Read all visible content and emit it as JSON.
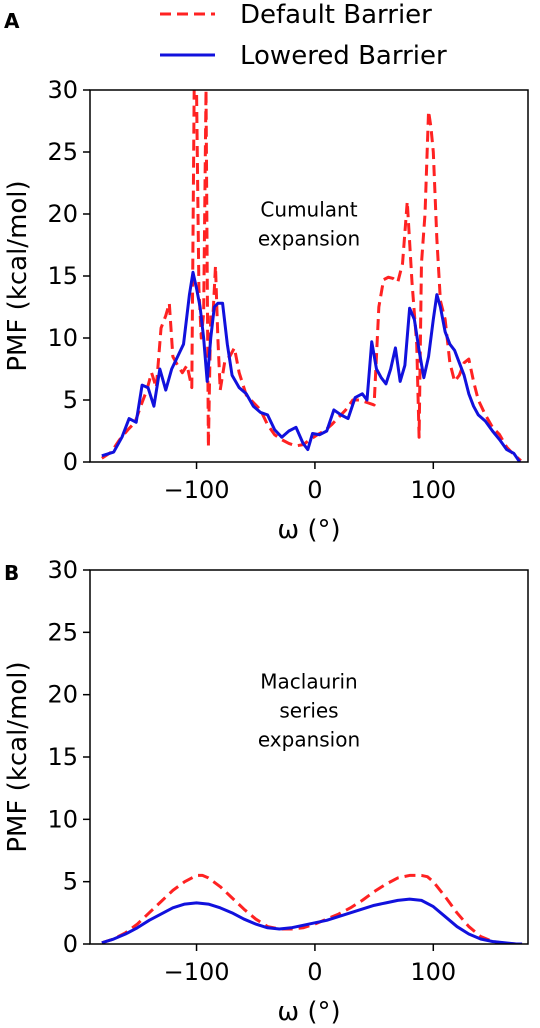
{
  "legend": {
    "items": [
      {
        "label": "Default Barrier",
        "color": "#ff2222",
        "dash": true
      },
      {
        "label": "Lowered Barrier",
        "color": "#1111dd",
        "dash": false
      }
    ]
  },
  "chart_data": [
    {
      "panel_label": "A",
      "type": "line",
      "xlabel": "ω (°)",
      "ylabel": "PMF (kcal/mol)",
      "xlim": [
        -190,
        180
      ],
      "ylim": [
        0,
        30
      ],
      "xticks": [
        -100,
        0,
        100
      ],
      "xtick_labels": [
        "−100",
        "0",
        "100"
      ],
      "yticks": [
        0,
        5,
        10,
        15,
        20,
        25,
        30
      ],
      "annotation": [
        "Cumulant",
        "expansion"
      ],
      "annotation_pos": [
        -5,
        19.8
      ],
      "series": [
        {
          "name": "Default Barrier",
          "color": "#ff2222",
          "dash": true,
          "x": [
            -180,
            -172,
            -165,
            -158,
            -152,
            -146,
            -142,
            -138,
            -134,
            -130,
            -126,
            -123,
            -120,
            -116,
            -112,
            -108,
            -104,
            -102,
            -100,
            -98,
            -96,
            -94,
            -92,
            -90,
            -88,
            -86,
            -84,
            -82,
            -80,
            -76,
            -72,
            -68,
            -64,
            -58,
            -52,
            -46,
            -40,
            -34,
            -28,
            -22,
            -16,
            -10,
            -4,
            2,
            8,
            14,
            20,
            26,
            32,
            38,
            44,
            50,
            54,
            58,
            62,
            66,
            70,
            74,
            78,
            82,
            86,
            88,
            90,
            93,
            96,
            98,
            100,
            103,
            106,
            110,
            114,
            118,
            122,
            126,
            130,
            134,
            138,
            144,
            150,
            156,
            162,
            168,
            174
          ],
          "y": [
            0.3,
            0.8,
            1.8,
            2.6,
            3.2,
            4.8,
            5.8,
            7.2,
            6.0,
            10.8,
            11.8,
            12.8,
            8.5,
            7.8,
            7.2,
            7.8,
            6.0,
            30,
            30,
            14,
            10,
            12,
            30,
            1.2,
            12,
            12,
            15.8,
            10,
            5.8,
            8.2,
            8.5,
            9.2,
            7.2,
            5.4,
            4.8,
            4.2,
            3.0,
            2.2,
            1.8,
            1.5,
            1.3,
            1.4,
            1.8,
            2.2,
            2.5,
            3.0,
            3.6,
            4.2,
            5.0,
            5.0,
            4.8,
            4.6,
            12.5,
            14.7,
            14.9,
            14.8,
            14.5,
            16.0,
            21.0,
            14.5,
            9.5,
            2.0,
            16.0,
            20.0,
            28.3,
            27.0,
            25.0,
            18.0,
            13.0,
            11.5,
            8.0,
            6.5,
            7.0,
            8.0,
            8.3,
            6.5,
            5.0,
            3.8,
            2.8,
            2.2,
            1.2,
            0.6,
            0.1
          ]
        },
        {
          "name": "Lowered Barrier",
          "color": "#1111dd",
          "dash": false,
          "x": [
            -180,
            -170,
            -163,
            -157,
            -151,
            -146,
            -141,
            -136,
            -131,
            -126,
            -121,
            -116,
            -111,
            -106,
            -103,
            -100,
            -97,
            -94,
            -91,
            -88,
            -85,
            -82,
            -78,
            -74,
            -70,
            -64,
            -58,
            -52,
            -46,
            -40,
            -34,
            -28,
            -22,
            -16,
            -10,
            -6,
            -2,
            4,
            10,
            16,
            22,
            28,
            34,
            40,
            44,
            48,
            52,
            56,
            60,
            64,
            68,
            72,
            76,
            80,
            84,
            88,
            92,
            96,
            100,
            103,
            106,
            110,
            114,
            118,
            122,
            126,
            130,
            134,
            138,
            144,
            150,
            156,
            162,
            168,
            173
          ],
          "y": [
            0.5,
            0.8,
            2.0,
            3.5,
            3.2,
            6.2,
            6.0,
            4.5,
            7.5,
            5.8,
            7.5,
            8.5,
            9.5,
            13.5,
            15.3,
            14.0,
            12.5,
            10.0,
            6.5,
            10.0,
            12.5,
            12.8,
            12.8,
            9.5,
            7.0,
            6.0,
            5.5,
            4.5,
            4.0,
            3.8,
            2.6,
            2.0,
            2.5,
            2.8,
            1.5,
            1.0,
            2.3,
            2.2,
            2.5,
            4.2,
            3.8,
            3.5,
            5.2,
            5.5,
            5.0,
            9.7,
            7.5,
            6.8,
            6.3,
            7.5,
            9.2,
            6.5,
            7.8,
            12.4,
            11.5,
            9.0,
            6.8,
            8.5,
            11.5,
            13.5,
            12.5,
            10.5,
            9.5,
            9.0,
            8.0,
            7.0,
            5.5,
            4.5,
            3.8,
            3.3,
            2.5,
            1.8,
            1.0,
            0.7,
            0.0
          ]
        }
      ]
    },
    {
      "panel_label": "B",
      "type": "line",
      "xlabel": "ω (°)",
      "ylabel": "PMF (kcal/mol)",
      "xlim": [
        -190,
        180
      ],
      "ylim": [
        0,
        30
      ],
      "xticks": [
        -100,
        0,
        100
      ],
      "xtick_labels": [
        "−100",
        "0",
        "100"
      ],
      "yticks": [
        0,
        5,
        10,
        15,
        20,
        25,
        30
      ],
      "annotation": [
        "Maclaurin",
        "series",
        "expansion"
      ],
      "annotation_pos": [
        -5,
        20.5
      ],
      "series": [
        {
          "name": "Default Barrier",
          "color": "#ff2222",
          "dash": true,
          "x": [
            -180,
            -170,
            -160,
            -150,
            -140,
            -130,
            -120,
            -110,
            -100,
            -95,
            -90,
            -80,
            -70,
            -60,
            -50,
            -40,
            -30,
            -20,
            -10,
            0,
            10,
            20,
            30,
            40,
            50,
            60,
            70,
            80,
            90,
            95,
            100,
            110,
            120,
            130,
            140,
            150,
            160,
            170,
            175
          ],
          "y": [
            0.1,
            0.4,
            0.9,
            1.6,
            2.5,
            3.4,
            4.3,
            5.0,
            5.5,
            5.5,
            5.3,
            4.6,
            3.7,
            2.8,
            2.0,
            1.4,
            1.2,
            1.2,
            1.3,
            1.6,
            2.0,
            2.4,
            2.9,
            3.5,
            4.2,
            4.8,
            5.3,
            5.5,
            5.5,
            5.4,
            5.0,
            3.8,
            2.5,
            1.4,
            0.6,
            0.2,
            0.05,
            0.0,
            0.0
          ]
        },
        {
          "name": "Lowered Barrier",
          "color": "#1111dd",
          "dash": false,
          "x": [
            -180,
            -170,
            -160,
            -150,
            -140,
            -130,
            -120,
            -110,
            -100,
            -90,
            -80,
            -70,
            -60,
            -50,
            -40,
            -30,
            -20,
            -10,
            0,
            10,
            20,
            30,
            40,
            50,
            60,
            70,
            80,
            90,
            100,
            110,
            120,
            130,
            140,
            150,
            160,
            170,
            175
          ],
          "y": [
            0.1,
            0.4,
            0.8,
            1.3,
            1.9,
            2.4,
            2.9,
            3.2,
            3.3,
            3.2,
            2.9,
            2.5,
            2.0,
            1.6,
            1.3,
            1.2,
            1.3,
            1.5,
            1.7,
            1.9,
            2.2,
            2.5,
            2.8,
            3.1,
            3.3,
            3.5,
            3.6,
            3.5,
            3.0,
            2.2,
            1.4,
            0.8,
            0.4,
            0.2,
            0.1,
            0.0,
            0.0
          ]
        }
      ]
    }
  ]
}
